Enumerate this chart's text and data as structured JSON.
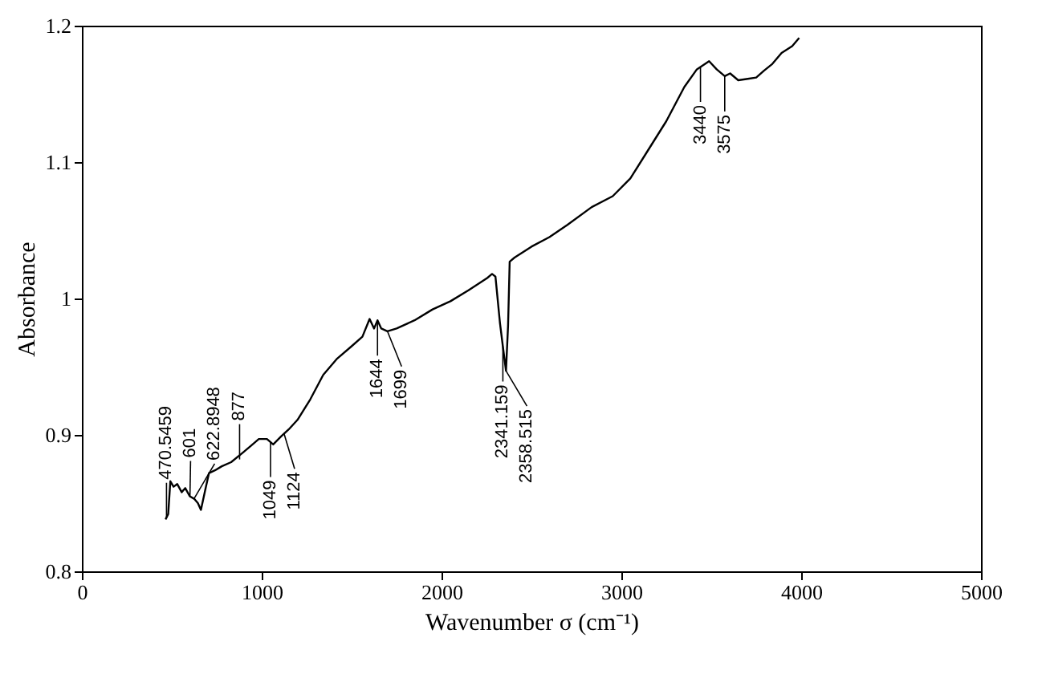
{
  "chart_data": {
    "type": "line",
    "xlabel": "Wavenumber σ (cm⁻¹)",
    "ylabel": "Absorbance",
    "x": [
      465,
      480,
      492,
      510,
      530,
      555,
      575,
      600,
      626,
      645,
      662,
      690,
      707,
      740,
      778,
      830,
      895,
      940,
      984,
      1029,
      1064,
      1109,
      1150,
      1199,
      1270,
      1342,
      1420,
      1500,
      1560,
      1600,
      1625,
      1644,
      1665,
      1699,
      1750,
      1850,
      1950,
      2050,
      2150,
      2254,
      2281,
      2300,
      2325,
      2341,
      2358.5,
      2370,
      2379,
      2406,
      2500,
      2600,
      2700,
      2835,
      2952,
      3050,
      3131,
      3250,
      3350,
      3420,
      3488,
      3530,
      3575,
      3605,
      3650,
      3703,
      3750,
      3793,
      3840,
      3891,
      3950,
      3989
    ],
    "series": [
      {
        "color": "#000000",
        "values": [
          0.838,
          0.842,
          0.866,
          0.862,
          0.864,
          0.858,
          0.861,
          0.855,
          0.853,
          0.85,
          0.845,
          0.862,
          0.872,
          0.874,
          0.877,
          0.88,
          0.887,
          0.892,
          0.897,
          0.897,
          0.893,
          0.899,
          0.904,
          0.911,
          0.926,
          0.944,
          0.956,
          0.965,
          0.972,
          0.985,
          0.978,
          0.984,
          0.978,
          0.976,
          0.978,
          0.984,
          0.992,
          0.998,
          1.006,
          1.015,
          1.018,
          1.016,
          0.982,
          0.965,
          0.947,
          0.98,
          1.027,
          1.03,
          1.038,
          1.045,
          1.054,
          1.067,
          1.075,
          1.088,
          1.105,
          1.13,
          1.155,
          1.168,
          1.174,
          1.168,
          1.163,
          1.165,
          1.16,
          1.161,
          1.162,
          1.167,
          1.172,
          1.18,
          1.185,
          1.191
        ]
      }
    ],
    "xlim": [
      0,
      5000
    ],
    "xticks": [
      0,
      1000,
      2000,
      3000,
      4000,
      5000
    ],
    "ylim": [
      0.8,
      1.2
    ],
    "yticks": [
      0.8,
      0.9,
      1,
      1.1,
      1.2
    ],
    "grid": false,
    "marker": "none",
    "line_style": "solid",
    "annotations": [
      {
        "text": "470.5459",
        "x": 470.5459,
        "y": 0.839
      },
      {
        "text": "601",
        "x": 601,
        "y": 0.855
      },
      {
        "text": "622.8948",
        "x": 622.8948,
        "y": 0.853
      },
      {
        "text": "877",
        "x": 877,
        "y": 0.882
      },
      {
        "text": "1049",
        "x": 1049,
        "y": 0.895
      },
      {
        "text": "1124",
        "x": 1124,
        "y": 0.901
      },
      {
        "text": "1644",
        "x": 1644,
        "y": 0.984
      },
      {
        "text": "1699",
        "x": 1699,
        "y": 0.976
      },
      {
        "text": "2341.159",
        "x": 2341.159,
        "y": 0.965
      },
      {
        "text": "2358.515",
        "x": 2358.515,
        "y": 0.947
      },
      {
        "text": "3440",
        "x": 3440,
        "y": 1.17
      },
      {
        "text": "3575",
        "x": 3575,
        "y": 1.163
      }
    ]
  }
}
